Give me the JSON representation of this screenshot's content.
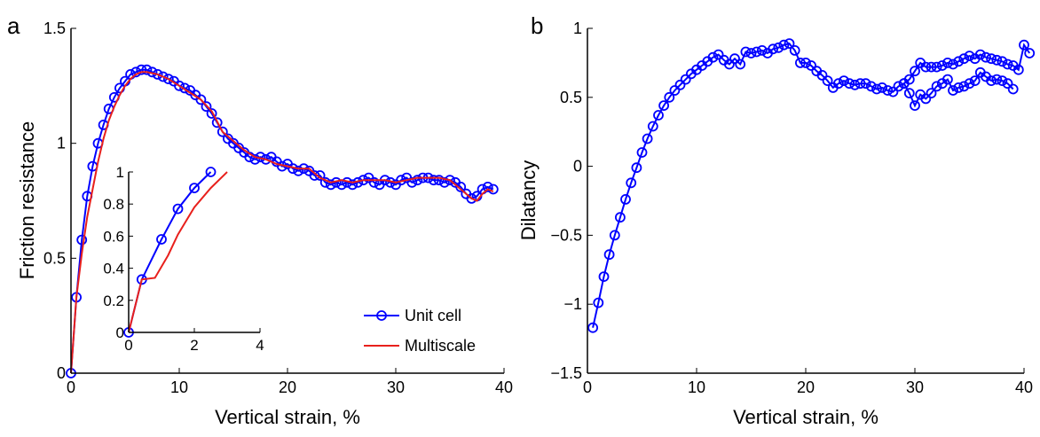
{
  "chart_data": [
    {
      "panel_label": "a",
      "type": "line",
      "xlabel": "Vertical strain, %",
      "ylabel": "Friction resistance",
      "xlim": [
        0,
        40
      ],
      "ylim": [
        0,
        1.5
      ],
      "xticks": [
        0,
        10,
        20,
        30,
        40
      ],
      "yticks": [
        0,
        0.5,
        1,
        1.5
      ],
      "xtick_labels": [
        "0",
        "10",
        "20",
        "30",
        "40"
      ],
      "ytick_labels": [
        "0",
        "0.5",
        "1",
        "1.5"
      ],
      "grid": false,
      "legend": {
        "position": "bottom-right",
        "entries": [
          "Unit cell",
          "Multiscale"
        ]
      },
      "series": [
        {
          "name": "Unit cell",
          "color": "#0000ff",
          "marker": "circle",
          "points": [
            [
              0.0,
              0.0
            ],
            [
              0.5,
              0.33
            ],
            [
              1.0,
              0.58
            ],
            [
              1.5,
              0.77
            ],
            [
              2.0,
              0.9
            ],
            [
              2.5,
              1.0
            ],
            [
              3.0,
              1.08
            ],
            [
              3.5,
              1.15
            ],
            [
              4.0,
              1.2
            ],
            [
              4.5,
              1.24
            ],
            [
              5.0,
              1.27
            ],
            [
              5.5,
              1.3
            ],
            [
              6.0,
              1.31
            ],
            [
              6.5,
              1.32
            ],
            [
              7.0,
              1.32
            ],
            [
              7.5,
              1.31
            ],
            [
              8.0,
              1.3
            ],
            [
              8.5,
              1.29
            ],
            [
              9.0,
              1.28
            ],
            [
              9.5,
              1.27
            ],
            [
              10.0,
              1.25
            ],
            [
              10.5,
              1.24
            ],
            [
              11.0,
              1.23
            ],
            [
              11.5,
              1.21
            ],
            [
              12.0,
              1.19
            ],
            [
              12.5,
              1.16
            ],
            [
              13.0,
              1.13
            ],
            [
              13.5,
              1.09
            ],
            [
              14.0,
              1.05
            ],
            [
              14.5,
              1.02
            ],
            [
              15.0,
              1.0
            ],
            [
              15.5,
              0.98
            ],
            [
              16.0,
              0.96
            ],
            [
              16.5,
              0.94
            ],
            [
              17.0,
              0.93
            ],
            [
              17.5,
              0.94
            ],
            [
              18.0,
              0.93
            ],
            [
              18.5,
              0.94
            ],
            [
              19.0,
              0.92
            ],
            [
              19.5,
              0.9
            ],
            [
              20.0,
              0.91
            ],
            [
              20.5,
              0.89
            ],
            [
              21.0,
              0.88
            ],
            [
              21.5,
              0.89
            ],
            [
              22.0,
              0.88
            ],
            [
              22.5,
              0.86
            ],
            [
              23.0,
              0.86
            ],
            [
              23.5,
              0.83
            ],
            [
              24.0,
              0.82
            ],
            [
              24.5,
              0.83
            ],
            [
              25.0,
              0.82
            ],
            [
              25.5,
              0.83
            ],
            [
              26.0,
              0.82
            ],
            [
              26.5,
              0.83
            ],
            [
              27.0,
              0.84
            ],
            [
              27.5,
              0.85
            ],
            [
              28.0,
              0.83
            ],
            [
              28.5,
              0.82
            ],
            [
              29.0,
              0.84
            ],
            [
              29.5,
              0.83
            ],
            [
              30.0,
              0.82
            ],
            [
              30.5,
              0.84
            ],
            [
              31.0,
              0.85
            ],
            [
              31.5,
              0.83
            ],
            [
              32.0,
              0.84
            ],
            [
              32.5,
              0.85
            ],
            [
              33.0,
              0.85
            ],
            [
              33.5,
              0.84
            ],
            [
              34.0,
              0.84
            ],
            [
              34.5,
              0.83
            ],
            [
              35.0,
              0.84
            ],
            [
              35.5,
              0.83
            ],
            [
              36.0,
              0.81
            ],
            [
              36.5,
              0.78
            ],
            [
              37.0,
              0.76
            ],
            [
              37.5,
              0.77
            ],
            [
              38.0,
              0.8
            ],
            [
              38.5,
              0.81
            ],
            [
              39.0,
              0.8
            ]
          ]
        },
        {
          "name": "Multiscale",
          "color": "#e8201c",
          "marker": "none",
          "points": [
            [
              0.0,
              0.0
            ],
            [
              0.5,
              0.33
            ],
            [
              1.0,
              0.52
            ],
            [
              1.5,
              0.68
            ],
            [
              2.0,
              0.8
            ],
            [
              2.5,
              0.92
            ],
            [
              3.0,
              1.02
            ],
            [
              3.5,
              1.1
            ],
            [
              4.0,
              1.16
            ],
            [
              4.5,
              1.21
            ],
            [
              5.0,
              1.25
            ],
            [
              5.5,
              1.28
            ],
            [
              6.0,
              1.3
            ],
            [
              6.5,
              1.31
            ],
            [
              7.0,
              1.31
            ],
            [
              8.0,
              1.3
            ],
            [
              9.0,
              1.28
            ],
            [
              10.0,
              1.25
            ],
            [
              11.0,
              1.22
            ],
            [
              12.0,
              1.19
            ],
            [
              13.0,
              1.14
            ],
            [
              14.0,
              1.05
            ],
            [
              15.0,
              1.01
            ],
            [
              16.0,
              0.97
            ],
            [
              17.0,
              0.94
            ],
            [
              18.0,
              0.93
            ],
            [
              19.0,
              0.91
            ],
            [
              20.0,
              0.9
            ],
            [
              21.0,
              0.89
            ],
            [
              22.0,
              0.89
            ],
            [
              23.0,
              0.85
            ],
            [
              24.0,
              0.83
            ],
            [
              25.0,
              0.84
            ],
            [
              26.0,
              0.83
            ],
            [
              27.0,
              0.84
            ],
            [
              28.0,
              0.84
            ],
            [
              29.0,
              0.84
            ],
            [
              30.0,
              0.83
            ],
            [
              31.0,
              0.84
            ],
            [
              32.0,
              0.85
            ],
            [
              33.0,
              0.85
            ],
            [
              34.0,
              0.85
            ],
            [
              35.0,
              0.84
            ],
            [
              36.0,
              0.8
            ],
            [
              37.0,
              0.76
            ],
            [
              37.5,
              0.75
            ],
            [
              38.0,
              0.78
            ],
            [
              38.5,
              0.8
            ],
            [
              39.0,
              0.79
            ]
          ]
        }
      ],
      "inset": {
        "xlim": [
          0,
          4
        ],
        "ylim": [
          0,
          1
        ],
        "xticks": [
          0,
          2,
          4
        ],
        "yticks": [
          0,
          0.2,
          0.4,
          0.6,
          0.8,
          1
        ],
        "xtick_labels": [
          "0",
          "2",
          "4"
        ],
        "ytick_labels": [
          "0",
          "0.2",
          "0.4",
          "0.6",
          "0.8",
          "1"
        ],
        "series": [
          {
            "name": "Unit cell",
            "color": "#0000ff",
            "marker": "circle",
            "points": [
              [
                0.0,
                0.0
              ],
              [
                0.4,
                0.33
              ],
              [
                1.0,
                0.58
              ],
              [
                1.5,
                0.77
              ],
              [
                2.0,
                0.9
              ],
              [
                2.5,
                1.0
              ]
            ]
          },
          {
            "name": "Multiscale",
            "color": "#e8201c",
            "marker": "none",
            "points": [
              [
                0.0,
                0.0
              ],
              [
                0.4,
                0.33
              ],
              [
                0.8,
                0.34
              ],
              [
                1.2,
                0.48
              ],
              [
                1.5,
                0.61
              ],
              [
                2.0,
                0.78
              ],
              [
                2.5,
                0.9
              ],
              [
                3.0,
                1.0
              ]
            ]
          }
        ]
      }
    },
    {
      "panel_label": "b",
      "type": "line",
      "xlabel": "Vertical strain, %",
      "ylabel": "Dilatancy",
      "xlim": [
        0,
        40
      ],
      "ylim": [
        -1.5,
        1
      ],
      "xticks": [
        0,
        10,
        20,
        30,
        40
      ],
      "yticks": [
        -1.5,
        -1,
        -0.5,
        0,
        0.5,
        1
      ],
      "xtick_labels": [
        "0",
        "10",
        "20",
        "30",
        "40"
      ],
      "ytick_labels": [
        "−1.5",
        "−1",
        "−0.5",
        "0",
        "0.5",
        "1"
      ],
      "grid": false,
      "series": [
        {
          "name": "",
          "color": "#0000ff",
          "marker": "circle",
          "points": [
            [
              0.5,
              -1.17
            ],
            [
              1.0,
              -0.99
            ],
            [
              1.5,
              -0.8
            ],
            [
              2.0,
              -0.64
            ],
            [
              2.5,
              -0.5
            ],
            [
              3.0,
              -0.37
            ],
            [
              3.5,
              -0.24
            ],
            [
              4.0,
              -0.12
            ],
            [
              4.5,
              -0.01
            ],
            [
              5.0,
              0.1
            ],
            [
              5.5,
              0.2
            ],
            [
              6.0,
              0.29
            ],
            [
              6.5,
              0.37
            ],
            [
              7.0,
              0.44
            ],
            [
              7.5,
              0.5
            ],
            [
              8.0,
              0.55
            ],
            [
              8.5,
              0.59
            ],
            [
              9.0,
              0.63
            ],
            [
              9.5,
              0.67
            ],
            [
              10.0,
              0.7
            ],
            [
              10.5,
              0.73
            ],
            [
              11.0,
              0.76
            ],
            [
              11.5,
              0.79
            ],
            [
              12.0,
              0.81
            ],
            [
              12.5,
              0.77
            ],
            [
              13.0,
              0.74
            ],
            [
              13.5,
              0.78
            ],
            [
              14.0,
              0.74
            ],
            [
              14.5,
              0.83
            ],
            [
              15.0,
              0.82
            ],
            [
              15.5,
              0.83
            ],
            [
              16.0,
              0.84
            ],
            [
              16.5,
              0.82
            ],
            [
              17.0,
              0.85
            ],
            [
              17.5,
              0.86
            ],
            [
              18.0,
              0.88
            ],
            [
              18.5,
              0.89
            ],
            [
              19.0,
              0.84
            ],
            [
              19.5,
              0.75
            ],
            [
              20.0,
              0.75
            ],
            [
              20.5,
              0.73
            ],
            [
              21.0,
              0.69
            ],
            [
              21.5,
              0.66
            ],
            [
              22.0,
              0.62
            ],
            [
              22.5,
              0.57
            ],
            [
              23.0,
              0.6
            ],
            [
              23.5,
              0.62
            ],
            [
              24.0,
              0.6
            ],
            [
              24.5,
              0.59
            ],
            [
              25.0,
              0.6
            ],
            [
              25.5,
              0.6
            ],
            [
              26.0,
              0.58
            ],
            [
              26.5,
              0.56
            ],
            [
              27.0,
              0.57
            ],
            [
              27.5,
              0.55
            ],
            [
              28.0,
              0.54
            ],
            [
              28.5,
              0.58
            ],
            [
              29.0,
              0.6
            ],
            [
              29.5,
              0.53
            ],
            [
              30.0,
              0.44
            ],
            [
              30.5,
              0.52
            ],
            [
              31.0,
              0.49
            ],
            [
              31.5,
              0.53
            ],
            [
              32.0,
              0.58
            ],
            [
              32.5,
              0.6
            ],
            [
              33.0,
              0.63
            ],
            [
              33.5,
              0.55
            ],
            [
              34.0,
              0.57
            ],
            [
              34.5,
              0.58
            ],
            [
              35.0,
              0.6
            ],
            [
              35.5,
              0.62
            ],
            [
              36.0,
              0.68
            ],
            [
              36.5,
              0.65
            ],
            [
              37.0,
              0.62
            ],
            [
              37.5,
              0.63
            ],
            [
              38.0,
              0.62
            ],
            [
              38.5,
              0.6
            ],
            [
              39.0,
              0.56
            ],
            [
              29.0,
              0.6
            ],
            [
              29.5,
              0.63
            ],
            [
              30.0,
              0.69
            ],
            [
              30.5,
              0.75
            ],
            [
              31.0,
              0.72
            ],
            [
              31.5,
              0.72
            ],
            [
              32.0,
              0.72
            ],
            [
              32.5,
              0.73
            ],
            [
              33.0,
              0.75
            ],
            [
              33.5,
              0.74
            ],
            [
              34.0,
              0.76
            ],
            [
              34.5,
              0.78
            ],
            [
              35.0,
              0.8
            ],
            [
              35.5,
              0.78
            ],
            [
              36.0,
              0.81
            ],
            [
              36.5,
              0.79
            ],
            [
              37.0,
              0.78
            ],
            [
              37.5,
              0.77
            ],
            [
              38.0,
              0.76
            ],
            [
              38.5,
              0.74
            ],
            [
              39.0,
              0.73
            ],
            [
              39.5,
              0.7
            ],
            [
              40.0,
              0.88
            ],
            [
              40.5,
              0.82
            ]
          ]
        }
      ]
    }
  ]
}
